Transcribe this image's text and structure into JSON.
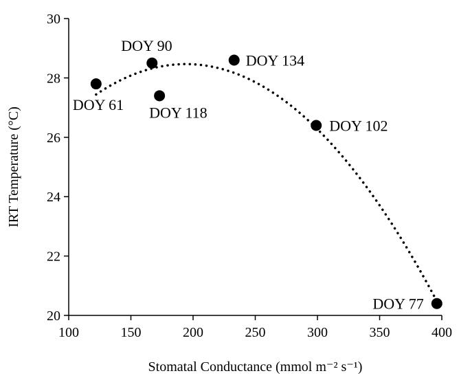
{
  "chart_data": {
    "type": "scatter",
    "title": "",
    "xlabel": "Stomatal Conductance (mmol m⁻² s⁻¹)",
    "ylabel": "IRT Temperature (°C)",
    "xlim": [
      100,
      400
    ],
    "ylim": [
      20,
      30
    ],
    "x_ticks": [
      100,
      150,
      200,
      250,
      300,
      350,
      400
    ],
    "y_ticks": [
      20,
      22,
      24,
      26,
      28,
      30
    ],
    "grid": false,
    "legend": "none",
    "points": [
      {
        "label": "DOY 61",
        "x": 122,
        "y": 27.8
      },
      {
        "label": "DOY 90",
        "x": 167,
        "y": 28.5
      },
      {
        "label": "DOY 118",
        "x": 173,
        "y": 27.4
      },
      {
        "label": "DOY 134",
        "x": 233,
        "y": 28.6
      },
      {
        "label": "DOY 102",
        "x": 299,
        "y": 26.4
      },
      {
        "label": "DOY 77",
        "x": 396,
        "y": 20.4
      }
    ],
    "trendline": {
      "type": "polynomial",
      "order": 2,
      "style": "dotted",
      "color": "#000000"
    },
    "colors": {
      "marker": "#000000",
      "axis": "#000000",
      "trendline": "#000000"
    }
  }
}
